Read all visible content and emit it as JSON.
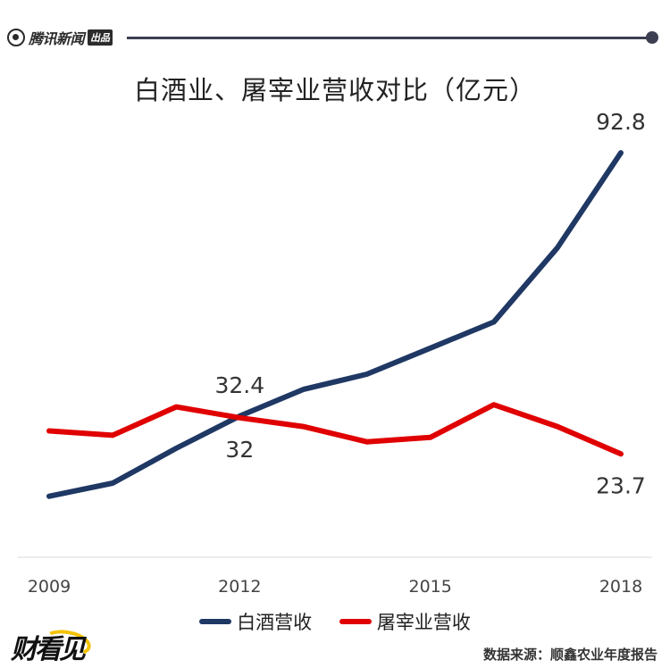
{
  "header": {
    "brand_name": "腾讯新闻",
    "brand_badge": "出品",
    "brand_icon": "tencent-news-logo-icon"
  },
  "chart_data": {
    "type": "line",
    "title": "白酒业、屠宰业营收对比（亿元）",
    "xlabel": "",
    "ylabel": "",
    "x": [
      2009,
      2010,
      2011,
      2012,
      2013,
      2014,
      2015,
      2016,
      2017,
      2018
    ],
    "x_tick_labels": [
      "2009",
      "2012",
      "2015",
      "2018"
    ],
    "x_ticks": [
      2009,
      2012,
      2015,
      2018
    ],
    "ylim": [
      0,
      100
    ],
    "grid": false,
    "legend_position": "bottom",
    "series": [
      {
        "name": "白酒营收",
        "color": "#1f3864",
        "values": [
          14,
          17,
          25,
          32.4,
          38.5,
          42,
          48,
          54,
          71,
          92.8
        ]
      },
      {
        "name": "屠宰业营收",
        "color": "#e00000",
        "values": [
          29,
          28,
          34.5,
          32,
          30,
          26.5,
          27.5,
          35,
          30,
          23.7
        ]
      }
    ],
    "annotations": [
      {
        "series": 0,
        "index": 3,
        "text": "32.4",
        "placement": "above"
      },
      {
        "series": 1,
        "index": 3,
        "text": "32",
        "placement": "below"
      },
      {
        "series": 0,
        "index": 9,
        "text": "92.8",
        "placement": "above"
      },
      {
        "series": 1,
        "index": 9,
        "text": "23.7",
        "placement": "below"
      }
    ]
  },
  "footer": {
    "logo_text": "财看见",
    "source": "数据来源：顺鑫农业年度报告"
  }
}
